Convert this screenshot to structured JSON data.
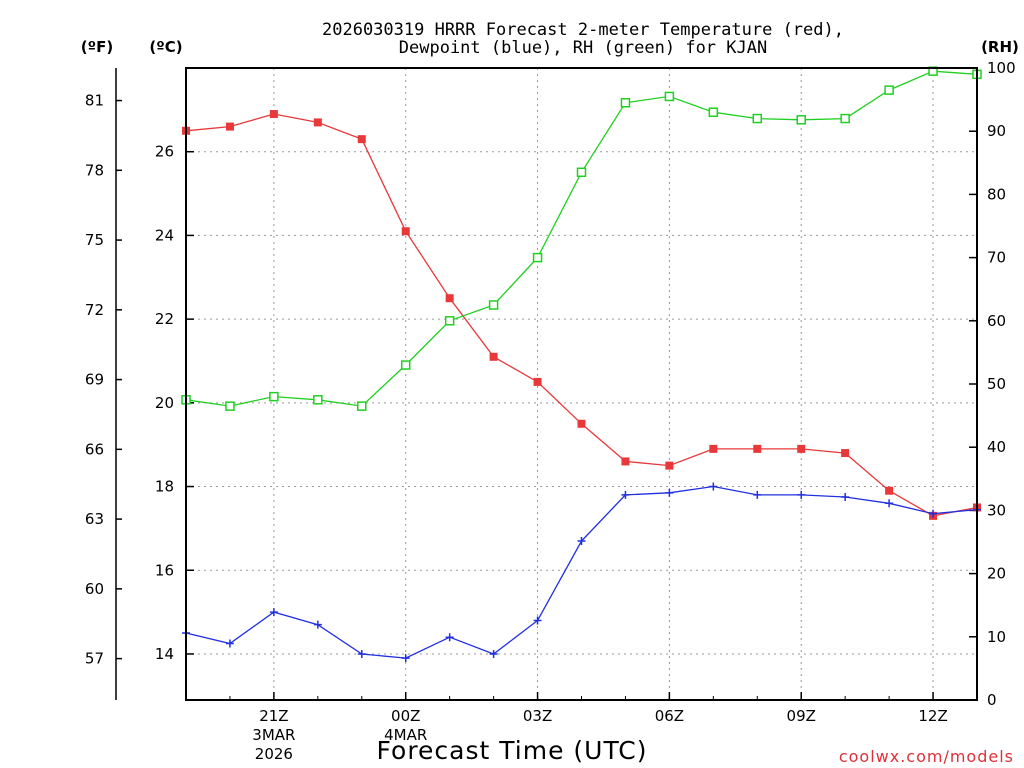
{
  "chart_data": {
    "type": "line",
    "title_line1": "2026030319 HRRR Forecast 2-meter Temperature (red),",
    "title_line2": "Dewpoint (blue), RH (green) for KJAN",
    "xlabel": "Forecast Time (UTC)",
    "credit": "coolwx.com/models",
    "units": {
      "fahrenheit": "(ºF)",
      "celsius": "(ºC)",
      "rh": "(RH)"
    },
    "hours": [
      0,
      1,
      2,
      3,
      4,
      5,
      6,
      7,
      8,
      9,
      10,
      11,
      12,
      13,
      14,
      15,
      16,
      17,
      18
    ],
    "xlim": [
      0,
      18
    ],
    "celsius_axis": {
      "ylim": [
        12.9,
        28
      ],
      "ticks": [
        14,
        16,
        18,
        20,
        22,
        24,
        26
      ]
    },
    "fahrenheit_axis": {
      "ticks": [
        57,
        60,
        63,
        66,
        69,
        72,
        75,
        78,
        81
      ]
    },
    "rh_axis": {
      "ylim": [
        0,
        100
      ],
      "ticks": [
        0,
        10,
        20,
        30,
        40,
        50,
        60,
        70,
        80,
        90,
        100
      ]
    },
    "x_ticks": [
      {
        "hour": 2,
        "label": "21Z",
        "sub1": "3MAR",
        "sub2": "2026"
      },
      {
        "hour": 5,
        "label": "00Z",
        "sub1": "4MAR",
        "sub2": ""
      },
      {
        "hour": 8,
        "label": "03Z",
        "sub1": "",
        "sub2": ""
      },
      {
        "hour": 11,
        "label": "06Z",
        "sub1": "",
        "sub2": ""
      },
      {
        "hour": 14,
        "label": "09Z",
        "sub1": "",
        "sub2": ""
      },
      {
        "hour": 17,
        "label": "12Z",
        "sub1": "",
        "sub2": ""
      }
    ],
    "series": [
      {
        "name": "Temperature",
        "unit": "C",
        "color": "#e8383a",
        "marker": "filled-square",
        "values": [
          26.5,
          26.6,
          26.9,
          26.7,
          26.3,
          24.1,
          22.5,
          21.1,
          20.5,
          19.5,
          18.6,
          18.5,
          18.9,
          18.9,
          18.9,
          18.8,
          17.9,
          17.3,
          17.5
        ]
      },
      {
        "name": "Dewpoint",
        "unit": "C",
        "color": "#2030e0",
        "marker": "plus",
        "values": [
          14.5,
          14.25,
          15.0,
          14.7,
          14.0,
          13.9,
          14.4,
          14.0,
          14.8,
          16.7,
          17.8,
          17.85,
          18.0,
          17.8,
          17.8,
          17.75,
          17.6,
          17.35,
          17.45
        ]
      },
      {
        "name": "RH",
        "unit": "%",
        "color": "#20d020",
        "marker": "open-square",
        "values": [
          47.5,
          46.5,
          48,
          47.5,
          46.5,
          53,
          60,
          62.5,
          70,
          83.5,
          94.5,
          95.5,
          93,
          92,
          91.8,
          92,
          96.5,
          99.5,
          99
        ]
      }
    ]
  }
}
